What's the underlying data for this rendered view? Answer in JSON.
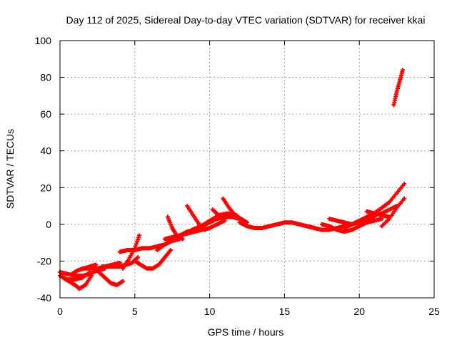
{
  "chart_data": {
    "type": "scatter",
    "title": "Day 112 of 2025, Sidereal Day-to-day VTEC variation (SDTVAR) for receiver kkai",
    "xlabel": "GPS time / hours",
    "ylabel": "SDTVAR / TECUs",
    "xlim": [
      0,
      25
    ],
    "ylim": [
      -40,
      100
    ],
    "x_ticks": [
      0,
      5,
      10,
      15,
      20,
      25
    ],
    "y_ticks": [
      -40,
      -20,
      0,
      20,
      40,
      60,
      80,
      100
    ],
    "grid": true,
    "marker": "plus",
    "color": "#ff0000",
    "series": [
      {
        "x": [
          0.0,
          0.5,
          1.0,
          1.5,
          2.0,
          2.5,
          3.0
        ],
        "y": [
          -26,
          -27,
          -28,
          -28,
          -27,
          -25,
          -24
        ]
      },
      {
        "x": [
          0.0,
          0.5,
          1.0,
          1.5,
          2.0
        ],
        "y": [
          -28,
          -30,
          -30,
          -29,
          -26
        ]
      },
      {
        "x": [
          0.2,
          0.6,
          1.0,
          1.3,
          1.7,
          2.1
        ],
        "y": [
          -29,
          -31,
          -33,
          -35,
          -33,
          -28
        ]
      },
      {
        "x": [
          0.8,
          1.2,
          1.6,
          2.0,
          2.4
        ],
        "y": [
          -27,
          -25,
          -24,
          -23,
          -22
        ]
      },
      {
        "x": [
          1.5,
          2.0,
          2.5,
          3.0,
          3.5,
          4.0
        ],
        "y": [
          -24,
          -24,
          -24,
          -23,
          -22,
          -21
        ]
      },
      {
        "x": [
          2.2,
          2.6,
          3.0,
          3.4,
          3.8,
          4.2
        ],
        "y": [
          -23,
          -26,
          -29,
          -32,
          -33,
          -31
        ]
      },
      {
        "x": [
          2.8,
          3.2,
          3.6,
          4.0,
          4.4,
          4.8,
          5.2
        ],
        "y": [
          -23,
          -23,
          -23,
          -23,
          -22,
          -21,
          -18
        ]
      },
      {
        "x": [
          4.2,
          4.6,
          5.0,
          5.3
        ],
        "y": [
          -24,
          -19,
          -13,
          -6
        ]
      },
      {
        "x": [
          4.0,
          4.5,
          5.0,
          5.5,
          6.0,
          6.5,
          7.0,
          7.5,
          8.0
        ],
        "y": [
          -15,
          -14,
          -14,
          -13,
          -13,
          -12,
          -11,
          -9,
          -8
        ]
      },
      {
        "x": [
          5.0,
          5.4,
          5.8,
          6.2,
          6.6,
          7.0,
          7.4
        ],
        "y": [
          -20,
          -22,
          -24,
          -24,
          -22,
          -18,
          -14
        ]
      },
      {
        "x": [
          6.5,
          7.0,
          7.5,
          8.0,
          8.5,
          9.0,
          9.5,
          10.0,
          10.5,
          11.0
        ],
        "y": [
          -14,
          -11,
          -8,
          -6,
          -5,
          -4,
          -3,
          -2,
          0,
          2
        ]
      },
      {
        "x": [
          7.0,
          7.5,
          8.0,
          8.5,
          9.0,
          9.5,
          10.0,
          10.5,
          11.0,
          11.5,
          12.0
        ],
        "y": [
          -8,
          -7,
          -6,
          -4,
          -3,
          -1,
          1,
          3,
          4,
          4,
          3
        ]
      },
      {
        "x": [
          7.2,
          7.5,
          7.8,
          8.2
        ],
        "y": [
          4,
          -2,
          -6,
          -8
        ]
      },
      {
        "x": [
          8.5,
          8.9,
          9.3,
          9.7
        ],
        "y": [
          10,
          5,
          0,
          -3
        ]
      },
      {
        "x": [
          8.8,
          9.4,
          10.0,
          10.6,
          11.2,
          11.8
        ],
        "y": [
          -3,
          -1,
          2,
          5,
          6,
          5
        ]
      },
      {
        "x": [
          10.2,
          10.6,
          11.0
        ],
        "y": [
          8,
          5,
          3
        ]
      },
      {
        "x": [
          10.9,
          11.3,
          11.7,
          12.1,
          12.5
        ],
        "y": [
          14,
          9,
          5,
          3,
          1
        ]
      },
      {
        "x": [
          12.0,
          12.5,
          13.0,
          13.5,
          14.0,
          14.5,
          15.0,
          15.5,
          16.0,
          16.5,
          17.0
        ],
        "y": [
          1,
          -1,
          -2,
          -2,
          -1,
          0,
          1,
          1,
          0,
          -1,
          -2
        ]
      },
      {
        "x": [
          16.5,
          17.0,
          17.5,
          18.0,
          18.5,
          19.0,
          19.5,
          20.0,
          20.5,
          21.0
        ],
        "y": [
          -1,
          -2,
          -3,
          -3,
          -2,
          -1,
          0,
          2,
          3,
          4
        ]
      },
      {
        "x": [
          17.5,
          18.0,
          18.5,
          19.0,
          19.5,
          20.0,
          20.5,
          21.0,
          21.5
        ],
        "y": [
          0,
          -1,
          -3,
          -4,
          -3,
          -1,
          1,
          2,
          3
        ]
      },
      {
        "x": [
          18.0,
          18.5,
          19.0,
          19.5,
          20.0,
          20.5,
          21.0,
          21.5,
          22.0,
          22.5
        ],
        "y": [
          3,
          2,
          1,
          0,
          1,
          3,
          5,
          6,
          8,
          10
        ]
      },
      {
        "x": [
          19.0,
          19.5,
          20.0,
          20.5,
          21.0,
          21.5,
          22.0,
          22.5,
          23.0
        ],
        "y": [
          -2,
          0,
          2,
          4,
          6,
          9,
          12,
          17,
          22
        ]
      },
      {
        "x": [
          21.5,
          22.0,
          22.5,
          23.0
        ],
        "y": [
          -1,
          3,
          9,
          14
        ]
      },
      {
        "x": [
          20.5,
          21.0,
          21.5,
          22.0
        ],
        "y": [
          7,
          6,
          5,
          4
        ]
      },
      {
        "x": [
          22.3,
          22.5,
          22.7,
          22.9
        ],
        "y": [
          65,
          72,
          78,
          84
        ]
      }
    ]
  }
}
